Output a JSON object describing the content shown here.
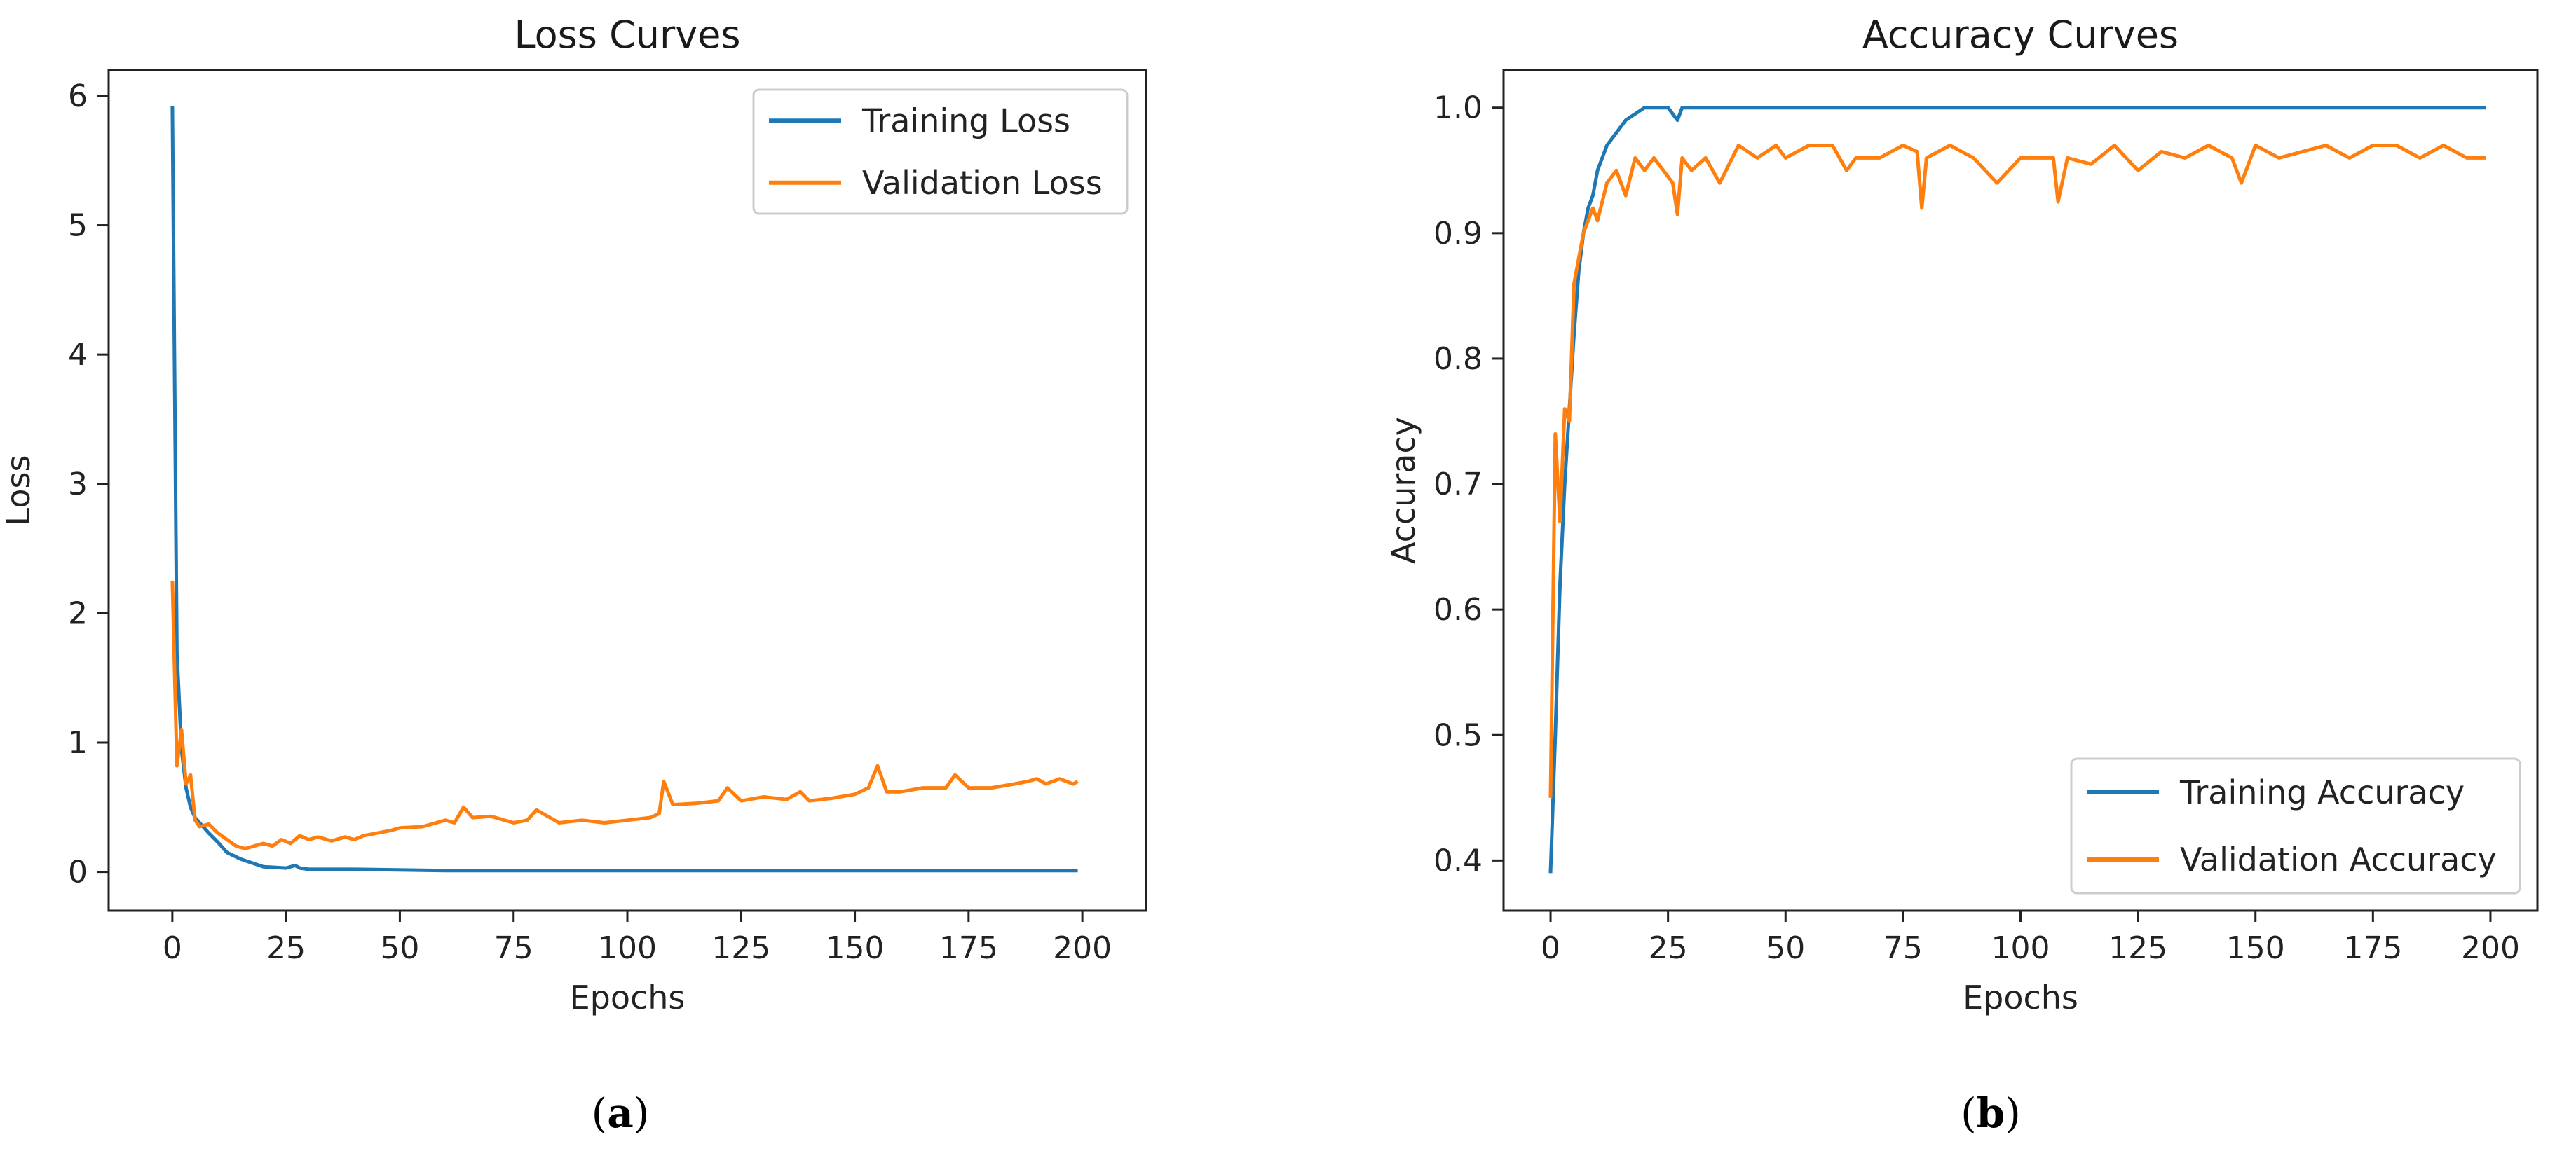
{
  "chart_data": [
    {
      "type": "line",
      "panel_label": "a",
      "title": "Loss Curves",
      "xlabel": "Epochs",
      "ylabel": "Loss",
      "xlim": [
        -14,
        214
      ],
      "ylim": [
        -0.3,
        6.2
      ],
      "xticks": [
        0,
        25,
        50,
        75,
        100,
        125,
        150,
        175,
        200
      ],
      "yticks": [
        0,
        1,
        2,
        3,
        4,
        5,
        6
      ],
      "ytick_labels": [
        "0",
        "1",
        "2",
        "3",
        "4",
        "5",
        "6"
      ],
      "legend_position": "top-right",
      "series": [
        {
          "name": "Training Loss",
          "color": "#1f77b4",
          "x": [
            0,
            1,
            2,
            3,
            4,
            5,
            6,
            8,
            10,
            12,
            15,
            20,
            25,
            27,
            28,
            30,
            40,
            60,
            80,
            100,
            120,
            140,
            150,
            160,
            180,
            199
          ],
          "y": [
            5.92,
            1.7,
            0.95,
            0.65,
            0.5,
            0.42,
            0.38,
            0.3,
            0.23,
            0.15,
            0.1,
            0.04,
            0.03,
            0.05,
            0.03,
            0.02,
            0.02,
            0.01,
            0.01,
            0.01,
            0.01,
            0.01,
            0.01,
            0.01,
            0.01,
            0.01
          ]
        },
        {
          "name": "Validation Loss",
          "color": "#ff7f0e",
          "x": [
            0,
            1,
            2,
            3,
            4,
            5,
            6,
            8,
            10,
            12,
            14,
            16,
            18,
            20,
            22,
            24,
            26,
            28,
            30,
            32,
            35,
            38,
            40,
            42,
            45,
            48,
            50,
            55,
            60,
            62,
            64,
            66,
            70,
            75,
            78,
            80,
            85,
            90,
            95,
            100,
            105,
            107,
            108,
            110,
            115,
            120,
            122,
            125,
            130,
            135,
            138,
            140,
            145,
            150,
            153,
            155,
            157,
            160,
            165,
            170,
            172,
            175,
            180,
            185,
            188,
            190,
            192,
            195,
            198,
            199
          ],
          "y": [
            2.25,
            0.82,
            1.1,
            0.68,
            0.75,
            0.4,
            0.35,
            0.37,
            0.3,
            0.25,
            0.2,
            0.18,
            0.2,
            0.22,
            0.2,
            0.25,
            0.22,
            0.28,
            0.25,
            0.27,
            0.24,
            0.27,
            0.25,
            0.28,
            0.3,
            0.32,
            0.34,
            0.35,
            0.4,
            0.38,
            0.5,
            0.42,
            0.43,
            0.38,
            0.4,
            0.48,
            0.38,
            0.4,
            0.38,
            0.4,
            0.42,
            0.45,
            0.7,
            0.52,
            0.53,
            0.55,
            0.65,
            0.55,
            0.58,
            0.56,
            0.62,
            0.55,
            0.57,
            0.6,
            0.65,
            0.82,
            0.62,
            0.62,
            0.65,
            0.65,
            0.75,
            0.65,
            0.65,
            0.68,
            0.7,
            0.72,
            0.68,
            0.72,
            0.68,
            0.7
          ]
        }
      ]
    },
    {
      "type": "line",
      "panel_label": "b",
      "title": "Accuracy Curves",
      "xlabel": "Epochs",
      "ylabel": "Accuracy",
      "xlim": [
        -10,
        210
      ],
      "ylim": [
        0.36,
        1.03
      ],
      "xticks": [
        0,
        25,
        50,
        75,
        100,
        125,
        150,
        175,
        200
      ],
      "yticks": [
        0.4,
        0.5,
        0.6,
        0.7,
        0.8,
        0.9,
        1.0
      ],
      "ytick_labels": [
        "0.4",
        "0.5",
        "0.6",
        "0.7",
        "0.8",
        "0.9",
        "1.0"
      ],
      "legend_position": "lower-right",
      "series": [
        {
          "name": "Training Accuracy",
          "color": "#1f77b4",
          "x": [
            0,
            1,
            2,
            3,
            4,
            5,
            6,
            7,
            8,
            9,
            10,
            11,
            12,
            13,
            14,
            15,
            16,
            18,
            20,
            22,
            25,
            27,
            28,
            30,
            35,
            40,
            45,
            50,
            75,
            100,
            125,
            150,
            175,
            199
          ],
          "y": [
            0.39,
            0.5,
            0.62,
            0.7,
            0.76,
            0.82,
            0.87,
            0.9,
            0.92,
            0.93,
            0.95,
            0.96,
            0.97,
            0.975,
            0.98,
            0.985,
            0.99,
            0.995,
            1.0,
            1.0,
            1.0,
            0.99,
            1.0,
            1.0,
            1.0,
            1.0,
            1.0,
            1.0,
            1.0,
            1.0,
            1.0,
            1.0,
            1.0,
            1.0
          ]
        },
        {
          "name": "Validation Accuracy",
          "color": "#ff7f0e",
          "x": [
            0,
            1,
            2,
            3,
            4,
            5,
            6,
            7,
            8,
            9,
            10,
            12,
            14,
            16,
            18,
            20,
            22,
            24,
            26,
            27,
            28,
            30,
            33,
            36,
            40,
            44,
            48,
            50,
            55,
            60,
            63,
            65,
            70,
            75,
            78,
            79,
            80,
            85,
            90,
            95,
            100,
            104,
            107,
            108,
            110,
            115,
            120,
            125,
            130,
            135,
            140,
            145,
            147,
            150,
            155,
            160,
            165,
            170,
            175,
            180,
            185,
            190,
            195,
            199
          ],
          "y": [
            0.45,
            0.74,
            0.67,
            0.76,
            0.75,
            0.86,
            0.88,
            0.9,
            0.91,
            0.92,
            0.91,
            0.94,
            0.95,
            0.93,
            0.96,
            0.95,
            0.96,
            0.95,
            0.94,
            0.915,
            0.96,
            0.95,
            0.96,
            0.94,
            0.97,
            0.96,
            0.97,
            0.96,
            0.97,
            0.97,
            0.95,
            0.96,
            0.96,
            0.97,
            0.965,
            0.92,
            0.96,
            0.97,
            0.96,
            0.94,
            0.96,
            0.96,
            0.96,
            0.925,
            0.96,
            0.955,
            0.97,
            0.95,
            0.965,
            0.96,
            0.97,
            0.96,
            0.94,
            0.97,
            0.96,
            0.965,
            0.97,
            0.96,
            0.97,
            0.97,
            0.96,
            0.97,
            0.96,
            0.96
          ]
        }
      ]
    }
  ]
}
